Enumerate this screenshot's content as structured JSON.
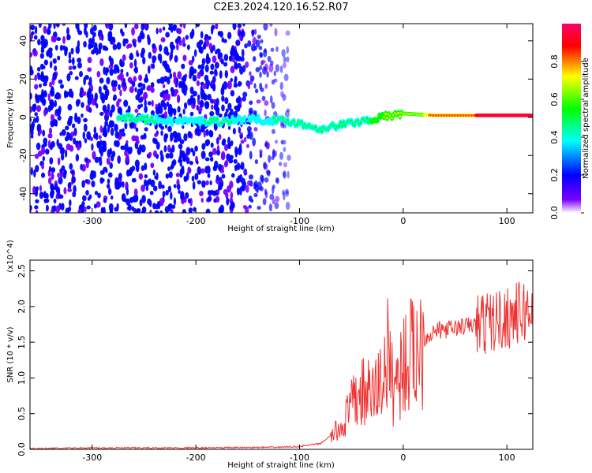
{
  "title": "C2E3.2024.120.16.52.R07",
  "chart_data": [
    {
      "type": "heatmap",
      "xlabel": "Height of straight line (km)",
      "ylabel": "Frequency (Hz)",
      "xlim": [
        -360,
        125
      ],
      "ylim": [
        -50,
        49
      ],
      "x_ticks": [
        -300,
        -200,
        -100,
        0,
        100
      ],
      "y_ticks": [
        -40,
        -20,
        0,
        20,
        40
      ],
      "colorbar": {
        "label": "Normalized spectral amplitude",
        "range": [
          0.0,
          1.0
        ],
        "ticks": [
          "0.0",
          "0.2",
          "0.4",
          "0.6",
          "0.8"
        ],
        "colormap": [
          "#ffffff",
          "#7a00ff",
          "#0000ff",
          "#00ffff",
          "#00ff00",
          "#ffff00",
          "#ff0000",
          "#ff0066"
        ]
      },
      "signal_track": [
        {
          "x": -275,
          "freq": 0,
          "amp": 0.45
        },
        {
          "x": -250,
          "freq": -1,
          "amp": 0.4
        },
        {
          "x": -220,
          "freq": -2,
          "amp": 0.35
        },
        {
          "x": -175,
          "freq": -2,
          "amp": 0.4
        },
        {
          "x": -150,
          "freq": -1,
          "amp": 0.35
        },
        {
          "x": -110,
          "freq": -2,
          "amp": 0.4
        },
        {
          "x": -80,
          "freq": -6,
          "amp": 0.45
        },
        {
          "x": -50,
          "freq": -3,
          "amp": 0.5
        },
        {
          "x": -20,
          "freq": 0,
          "amp": 0.55
        },
        {
          "x": 0,
          "freq": 2,
          "amp": 0.6
        },
        {
          "x": 30,
          "freq": 1,
          "amp": 0.75
        },
        {
          "x": 80,
          "freq": 1,
          "amp": 0.9
        },
        {
          "x": 125,
          "freq": 1,
          "amp": 0.95
        }
      ]
    },
    {
      "type": "line",
      "xlabel": "Height of straight line (km)",
      "ylabel": "SNR (10 * v/v)",
      "y_multiplier": "(x10^4)",
      "xlim": [
        -360,
        125
      ],
      "ylim": [
        0,
        2.65
      ],
      "x_ticks": [
        -300,
        -200,
        -100,
        0,
        100
      ],
      "y_ticks": [
        "0.0",
        "0.5",
        "1.0",
        "1.5",
        "2.0",
        "2.5"
      ],
      "series": [
        {
          "color": "#ee3333",
          "x": [
            -360,
            -300,
            -200,
            -120,
            -100,
            -80,
            -60,
            -50,
            -40,
            -30,
            -20,
            -15,
            -10,
            -5,
            0,
            10,
            20,
            30,
            50,
            70,
            90,
            110,
            125
          ],
          "y": [
            0.01,
            0.02,
            0.02,
            0.03,
            0.04,
            0.08,
            0.3,
            0.6,
            0.8,
            0.75,
            1.0,
            1.3,
            0.9,
            1.0,
            1.2,
            1.35,
            1.55,
            1.65,
            1.7,
            1.75,
            1.8,
            1.9,
            1.95
          ]
        }
      ]
    }
  ]
}
